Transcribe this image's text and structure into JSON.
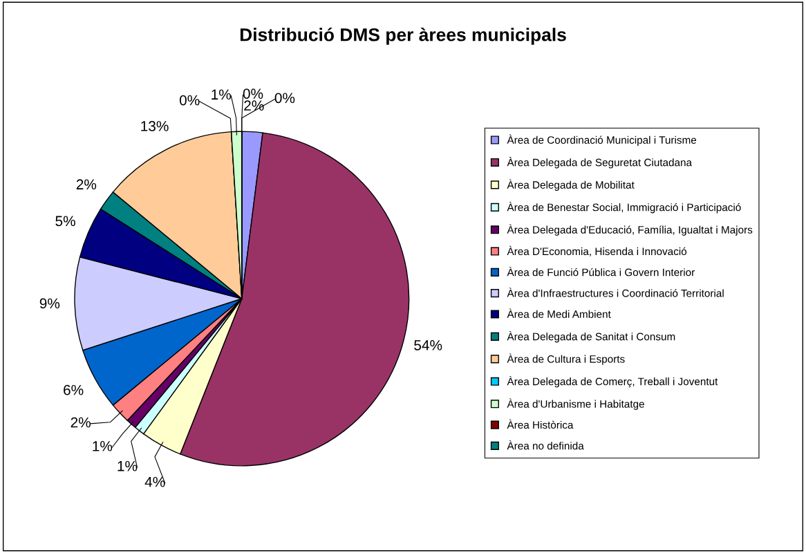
{
  "chart_data": {
    "type": "pie",
    "title": "Distribució DMS per àrees municipals",
    "categories": [
      "Àrea de Coordinació Municipal i Turisme",
      "Àrea Delegada de Seguretat Ciutadana",
      "Àrea Delegada de Mobilitat",
      "Àrea de Benestar Social, Immigració i Participació",
      "Àrea Delegada d'Educació, Família, Igualtat i Majors",
      "Àrea D'Economia, Hisenda i Innovació",
      "Àrea de Funció Pública i Govern Interior",
      "Àrea d'Infraestructures i Coordinació Territorial",
      "Àrea de Medi Ambient",
      "Àrea Delegada de Sanitat i Consum",
      "Àrea de Cultura i Esports",
      "Àrea Delegada de Comerç, Treball i Joventut",
      "Àrea d'Urbanisme i Habitatge",
      "Àrea Històrica",
      "Àrea no definida"
    ],
    "values": [
      2,
      54,
      4,
      1,
      1,
      2,
      6,
      9,
      5,
      2,
      13,
      0,
      1,
      0,
      0
    ],
    "value_labels": [
      "2%",
      "54%",
      "4%",
      "1%",
      "1%",
      "2%",
      "6%",
      "9%",
      "5%",
      "2%",
      "13%",
      "0%",
      "1%",
      "0%",
      "0%"
    ],
    "colors": [
      "#9999ff",
      "#993366",
      "#ffffcc",
      "#ccffff",
      "#660066",
      "#ff8080",
      "#0066cc",
      "#ccccff",
      "#000080",
      "#008080",
      "#ffcc99",
      "#00ccff",
      "#ccffcc",
      "#800000",
      "#008080"
    ],
    "legend": "right"
  }
}
